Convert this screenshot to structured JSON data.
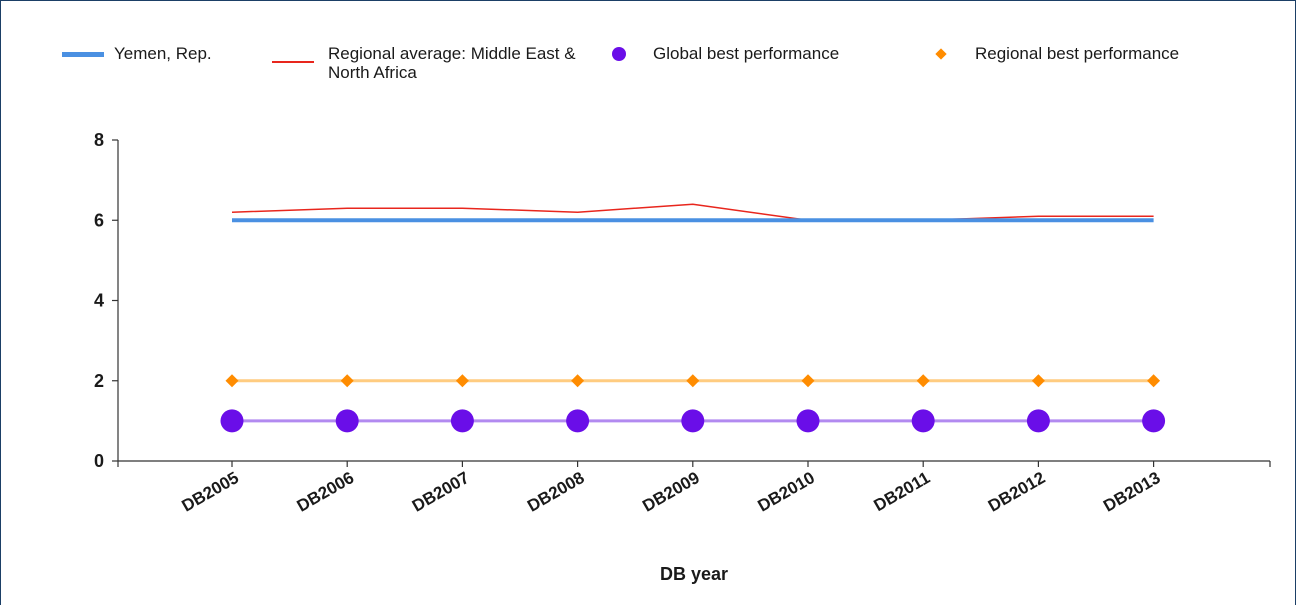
{
  "chart_data": {
    "type": "line",
    "title": "",
    "xlabel": "DB year",
    "ylabel": "",
    "ylim": [
      0,
      8
    ],
    "yticks": [
      0,
      2,
      4,
      6,
      8
    ],
    "categories": [
      "DB2005",
      "DB2006",
      "DB2007",
      "DB2008",
      "DB2009",
      "DB2010",
      "DB2011",
      "DB2012",
      "DB2013"
    ],
    "legend_position": "top",
    "grid": false,
    "series": [
      {
        "name": "Yemen, Rep.",
        "values": [
          6,
          6,
          6,
          6,
          6,
          6,
          6,
          6,
          6
        ],
        "color": "#4a90e2",
        "style": "line"
      },
      {
        "name": "Regional average: Middle East & North Africa",
        "values": [
          6.2,
          6.3,
          6.3,
          6.2,
          6.4,
          6.0,
          6.0,
          6.1,
          6.1
        ],
        "color": "#e8261d",
        "style": "line"
      },
      {
        "name": "Global best performance",
        "values": [
          1,
          1,
          1,
          1,
          1,
          1,
          1,
          1,
          1
        ],
        "color": "#6a0ee8",
        "line_color": "#b28af0",
        "style": "circle"
      },
      {
        "name": "Regional best performance",
        "values": [
          2,
          2,
          2,
          2,
          2,
          2,
          2,
          2,
          2
        ],
        "color": "#ff8c00",
        "line_color": "#ffcc80",
        "style": "diamond"
      }
    ]
  }
}
